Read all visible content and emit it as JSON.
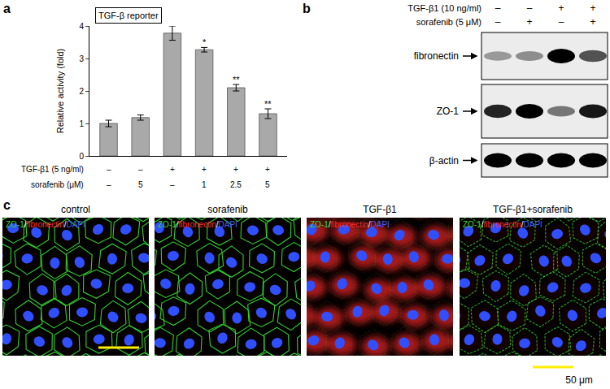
{
  "panel_labels": [
    "a",
    "b",
    "c"
  ],
  "chart_data": {
    "type": "bar",
    "title": "TGF-β reporter",
    "ylabel": "Relative activity (fold)",
    "categories": [
      null,
      null,
      null,
      null,
      null,
      null
    ],
    "values": [
      1.0,
      1.18,
      3.78,
      3.27,
      2.1,
      1.3
    ],
    "errors": [
      0.1,
      0.08,
      0.22,
      0.07,
      0.1,
      0.15
    ],
    "significance": [
      null,
      null,
      null,
      "*",
      "**",
      "**"
    ],
    "color": "#a9a9a9",
    "ylim": [
      0,
      4
    ],
    "yticks": [
      0,
      1,
      2,
      3,
      4
    ],
    "tick_labels": "y",
    "grid": false,
    "conditions": [
      {
        "label": "TGF-β1 (5 ng/ml)",
        "values": [
          "–",
          "–",
          "+",
          "+",
          "+",
          "+"
        ]
      },
      {
        "label": "sorafenib (μM)",
        "values": [
          "–",
          "5",
          "–",
          "1",
          "2.5",
          "5"
        ]
      }
    ]
  },
  "blot": {
    "conditions": [
      {
        "label": "TGF-β1 (10 ng/ml)",
        "values": [
          "–",
          "–",
          "+",
          "+"
        ]
      },
      {
        "label": "sorafenib (5 μM)",
        "values": [
          "–",
          "+",
          "–",
          "+"
        ]
      }
    ],
    "bands": [
      {
        "label": "fibronectin",
        "intensity": [
          0.35,
          0.4,
          1.0,
          0.65
        ]
      },
      {
        "label": "ZO-1",
        "intensity": [
          0.85,
          1.0,
          0.5,
          0.9
        ]
      },
      {
        "label": "β-actin",
        "intensity": [
          1.0,
          1.0,
          1.0,
          1.0
        ]
      }
    ]
  },
  "images": {
    "channels": [
      {
        "name": "ZO-1",
        "color": "#33dd33"
      },
      {
        "name": "fibronectin",
        "color": "#ff3030"
      },
      {
        "name": "DAPI",
        "color": "#4060ff"
      }
    ],
    "separator": "/",
    "panels": [
      {
        "title": "control",
        "zo1_level": 1.0,
        "fibronectin_level": 0.05
      },
      {
        "title": "sorafenib",
        "zo1_level": 1.0,
        "fibronectin_level": 0.05
      },
      {
        "title": "TGF-β1",
        "zo1_level": 0.12,
        "fibronectin_level": 1.0
      },
      {
        "title": "TGF-β1+sorafenib",
        "zo1_level": 0.8,
        "fibronectin_level": 0.12
      }
    ],
    "scale_bar": "50 μm",
    "scale_bar_color": "#ffee00"
  }
}
